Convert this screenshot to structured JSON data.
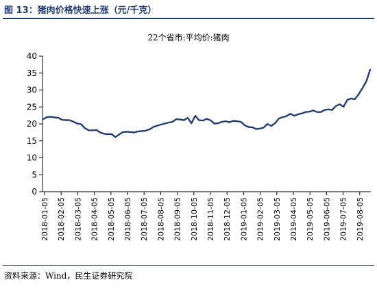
{
  "header": {
    "figure_title": "图 13：猪肉价格快速上涨（元/千克）"
  },
  "footer": {
    "source": "资料来源：Wind，民生证券研究院"
  },
  "chart_data": {
    "type": "line",
    "title": "22个省市:平均价:猪肉",
    "xlabel": "",
    "ylabel": "",
    "ylim": [
      0,
      40
    ],
    "yticks": [
      0,
      5,
      10,
      15,
      20,
      25,
      30,
      35,
      40
    ],
    "x_tick_labels": [
      "2018-01-05",
      "2018-02-05",
      "2018-03-05",
      "2018-04-05",
      "2018-05-05",
      "2018-06-05",
      "2018-07-05",
      "2018-08-05",
      "2018-09-05",
      "2018-10-05",
      "2018-11-05",
      "2018-12-05",
      "2019-01-05",
      "2019-02-05",
      "2019-03-05",
      "2019-04-05",
      "2019-05-05",
      "2019-06-05",
      "2019-07-05",
      "2019-08-05"
    ],
    "grid": false,
    "legend": "none",
    "line_color": "#1f3b7a",
    "series": [
      {
        "name": "22个省市:平均价:猪肉",
        "values": [
          21.4,
          22.0,
          22.1,
          21.9,
          21.8,
          21.2,
          21.1,
          21.1,
          20.6,
          20.1,
          19.9,
          18.7,
          18.1,
          18.1,
          18.2,
          17.5,
          17.1,
          17.0,
          17.0,
          16.1,
          16.9,
          17.6,
          17.7,
          17.6,
          17.5,
          17.8,
          17.9,
          18.0,
          18.4,
          19.1,
          19.5,
          19.8,
          20.1,
          20.4,
          20.6,
          21.4,
          21.3,
          21.1,
          21.8,
          20.2,
          22.4,
          21.1,
          21.0,
          21.5,
          21.1,
          20.1,
          20.2,
          20.6,
          20.8,
          20.5,
          20.9,
          20.8,
          20.6,
          19.6,
          19.1,
          19.0,
          18.5,
          18.6,
          18.9,
          20.0,
          19.4,
          20.2,
          21.6,
          22.0,
          22.3,
          23.0,
          22.4,
          22.8,
          23.1,
          23.5,
          23.6,
          24.0,
          23.5,
          23.5,
          24.1,
          24.3,
          24.1,
          25.3,
          25.8,
          25.1,
          27.1,
          27.5,
          27.3,
          28.8,
          30.6,
          32.6,
          36.0
        ]
      }
    ]
  }
}
